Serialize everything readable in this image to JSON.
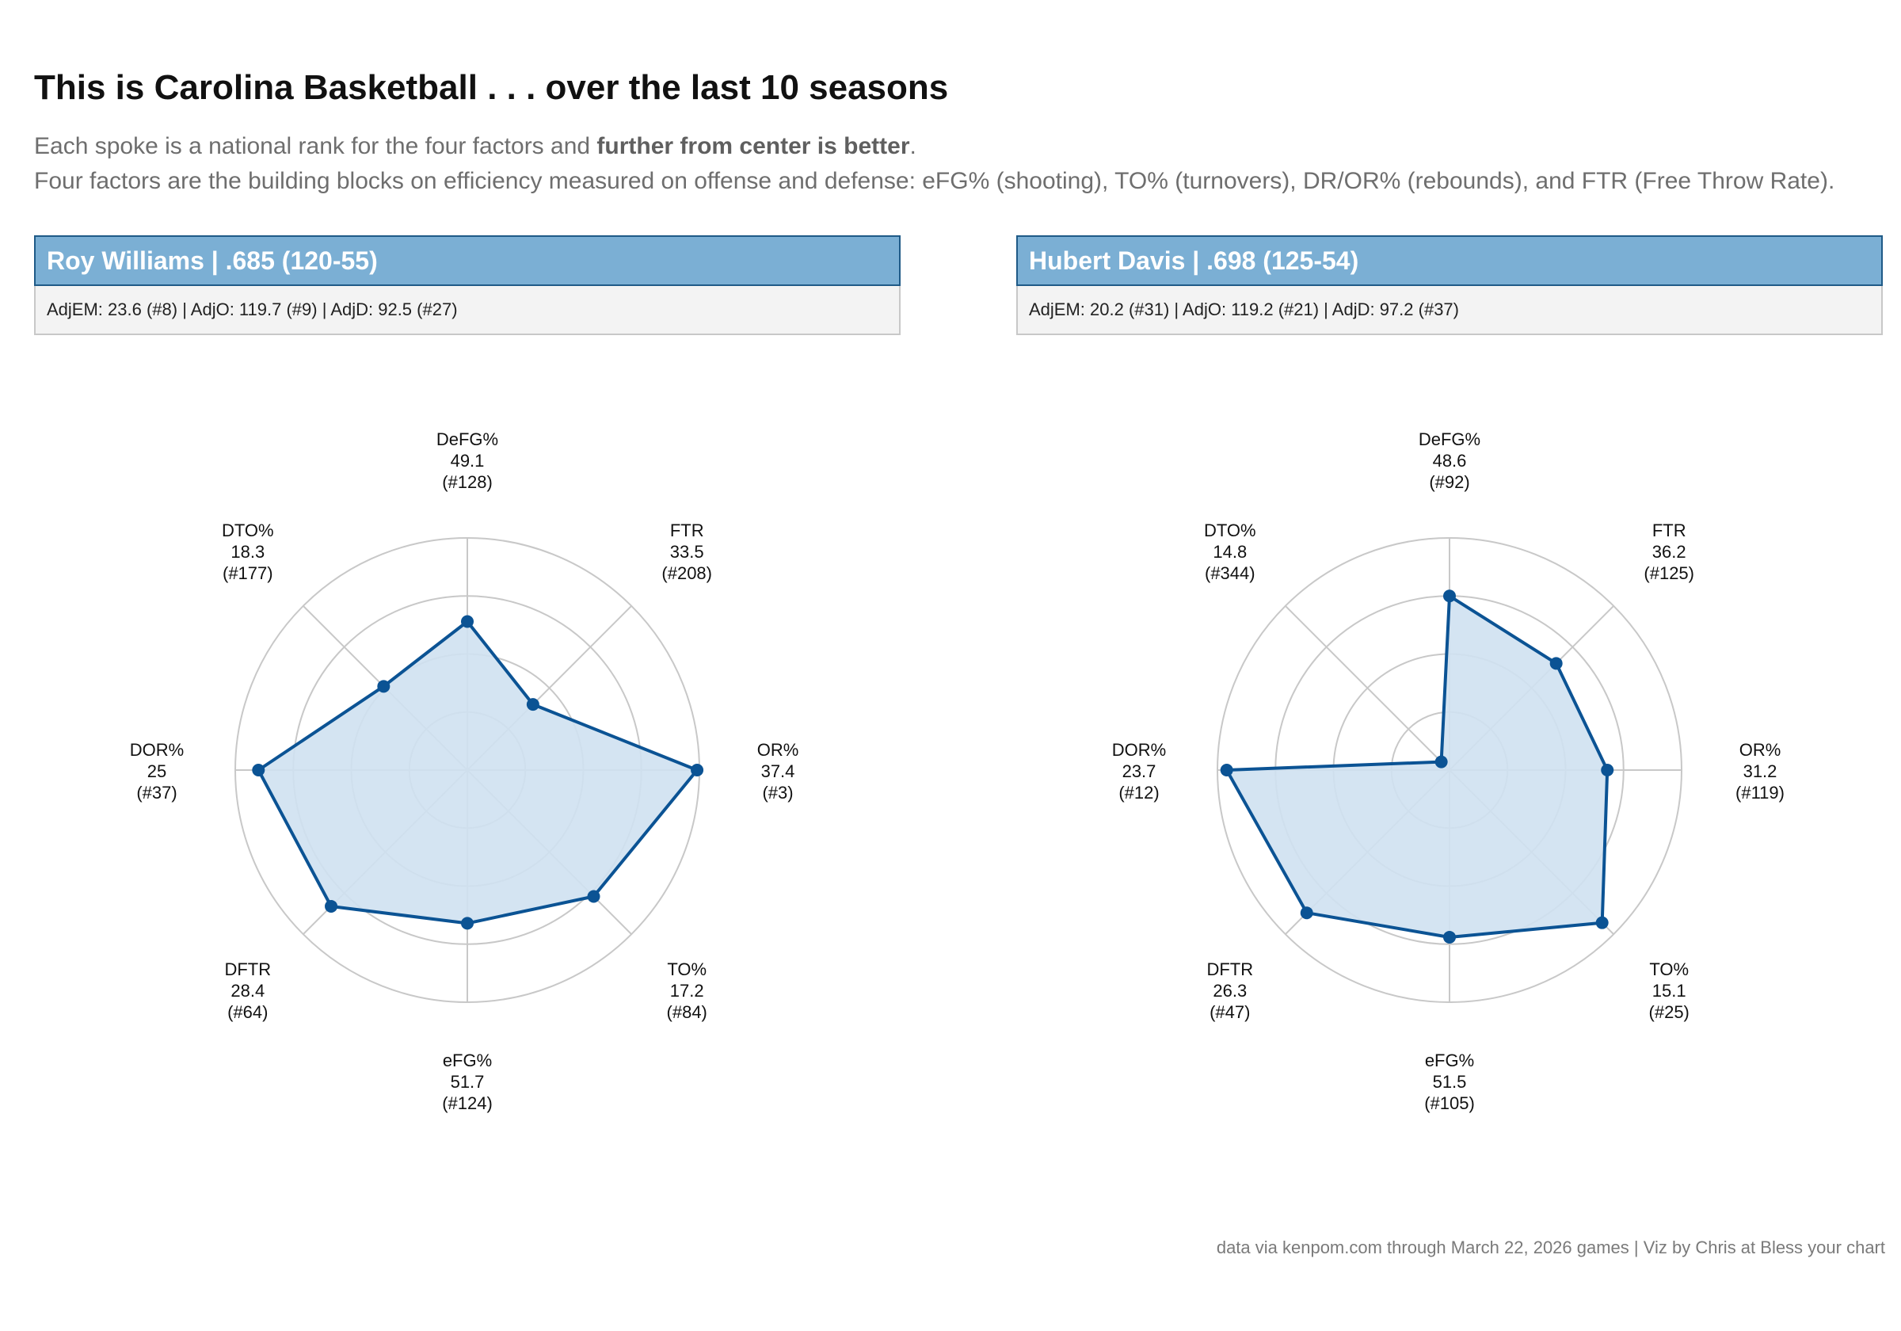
{
  "title": "This is Carolina Basketball . . . over the last 10 seasons",
  "subtitle": {
    "line1_pre": "Each spoke is a national rank for the four factors and ",
    "line1_bold": "further from center is better",
    "line1_post": ".",
    "line2": "Four factors are the building blocks on efficiency measured on offense and defense: eFG% (shooting), TO% (turnovers), DR/OR% (rebounds), and FTR (Free Throw Rate)."
  },
  "caption": "data via kenpom.com through March 22, 2026 games | Viz by Chris at Bless your chart",
  "colors": {
    "accent": "#7bafd4",
    "line": "#0b5394",
    "fill": "#cfe1f1",
    "grid": "#c8c8c8"
  },
  "chart_data": [
    {
      "type": "radar",
      "title": "Roy Williams | .685 (120-55)",
      "stats": "AdjEM: 23.6 (#8) | AdjO: 119.7 (#9)  | AdjD: 92.5 (#27)",
      "axes": [
        {
          "name": "DeFG%",
          "value": "49.1",
          "rank": "(#128)",
          "r": 0.64
        },
        {
          "name": "FTR",
          "value": "33.5",
          "rank": "(#208)",
          "r": 0.4
        },
        {
          "name": "OR%",
          "value": "37.4",
          "rank": "(#3)",
          "r": 0.99
        },
        {
          "name": "TO%",
          "value": "17.2",
          "rank": "(#84)",
          "r": 0.77
        },
        {
          "name": "eFG%",
          "value": "51.7",
          "rank": "(#124)",
          "r": 0.66
        },
        {
          "name": "DFTR",
          "value": "28.4",
          "rank": "(#64)",
          "r": 0.83
        },
        {
          "name": "DOR%",
          "value": "25",
          "rank": "(#37)",
          "r": 0.9
        },
        {
          "name": "DTO%",
          "value": "18.3",
          "rank": "(#177)",
          "r": 0.51
        }
      ]
    },
    {
      "type": "radar",
      "title": "Hubert Davis | .698 (125-54)",
      "stats": "AdjEM: 20.2 (#31) | AdjO: 119.2 (#21)  | AdjD: 97.2 (#37)",
      "axes": [
        {
          "name": "DeFG%",
          "value": "48.6",
          "rank": "(#92)",
          "r": 0.75
        },
        {
          "name": "FTR",
          "value": "36.2",
          "rank": "(#125)",
          "r": 0.65
        },
        {
          "name": "OR%",
          "value": "31.2",
          "rank": "(#119)",
          "r": 0.68
        },
        {
          "name": "TO%",
          "value": "15.1",
          "rank": "(#25)",
          "r": 0.93
        },
        {
          "name": "eFG%",
          "value": "51.5",
          "rank": "(#105)",
          "r": 0.72
        },
        {
          "name": "DFTR",
          "value": "26.3",
          "rank": "(#47)",
          "r": 0.87
        },
        {
          "name": "DOR%",
          "value": "23.7",
          "rank": "(#12)",
          "r": 0.96
        },
        {
          "name": "DTO%",
          "value": "14.8",
          "rank": "(#344)",
          "r": 0.05
        }
      ]
    }
  ]
}
